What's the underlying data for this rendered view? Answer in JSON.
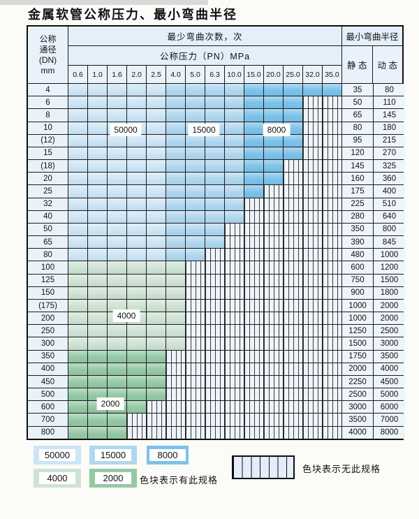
{
  "title": "金属软管公称压力、最小弯曲半径",
  "colors": {
    "c50000": "#cde5f5",
    "c15000": "#b0d7f0",
    "c8000": "#7cc2e9",
    "c4000": "#cfe3d4",
    "c2000": "#94c9a4",
    "nospec_bg": "#eef4fb",
    "header_bg": "#e3eff9",
    "grid": "#1c1c1c"
  },
  "table": {
    "corner_lines": [
      "公称",
      "通径",
      "(DN)",
      "mm"
    ],
    "bend_cycles_header": "最少弯曲次数，次",
    "pressure_header": "公称压力（PN）MPa",
    "radius_header": "最小弯曲半径",
    "static_label": "静 态",
    "dynamic_label": "动 态",
    "pressure_columns": [
      "0.6",
      "1.0",
      "1.6",
      "2.0",
      "2.5",
      "4.0",
      "5.0",
      "6.3",
      "10.0",
      "15.0",
      "20.0",
      "25.0",
      "32.0",
      "35.0"
    ],
    "blue_zone_breaks": {
      "c50000_max_col": 4,
      "c15000_max_col": 8
    },
    "rows": [
      {
        "dn": "4",
        "last": 13,
        "zone": "blue",
        "static": "35",
        "dynamic": "80"
      },
      {
        "dn": "6",
        "last": 11,
        "zone": "blue",
        "static": "50",
        "dynamic": "110"
      },
      {
        "dn": "8",
        "last": 11,
        "zone": "blue",
        "static": "65",
        "dynamic": "145"
      },
      {
        "dn": "10",
        "last": 11,
        "zone": "blue",
        "static": "80",
        "dynamic": "180"
      },
      {
        "dn": "(12)",
        "last": 11,
        "zone": "blue",
        "static": "95",
        "dynamic": "215"
      },
      {
        "dn": "15",
        "last": 11,
        "zone": "blue",
        "static": "120",
        "dynamic": "270"
      },
      {
        "dn": "(18)",
        "last": 10,
        "zone": "blue",
        "static": "145",
        "dynamic": "325"
      },
      {
        "dn": "20",
        "last": 10,
        "zone": "blue",
        "static": "160",
        "dynamic": "360"
      },
      {
        "dn": "25",
        "last": 9,
        "zone": "blue",
        "static": "175",
        "dynamic": "400"
      },
      {
        "dn": "32",
        "last": 8,
        "zone": "blue",
        "static": "225",
        "dynamic": "510"
      },
      {
        "dn": "40",
        "last": 8,
        "zone": "blue",
        "static": "280",
        "dynamic": "640"
      },
      {
        "dn": "50",
        "last": 7,
        "zone": "blue",
        "static": "350",
        "dynamic": "800"
      },
      {
        "dn": "65",
        "last": 7,
        "zone": "blue",
        "static": "390",
        "dynamic": "845"
      },
      {
        "dn": "80",
        "last": 6,
        "zone": "blue",
        "static": "480",
        "dynamic": "1000"
      },
      {
        "dn": "100",
        "last": 5,
        "zone": "g4",
        "static": "600",
        "dynamic": "1200"
      },
      {
        "dn": "125",
        "last": 5,
        "zone": "g4",
        "static": "750",
        "dynamic": "1500"
      },
      {
        "dn": "150",
        "last": 5,
        "zone": "g4",
        "static": "900",
        "dynamic": "1800"
      },
      {
        "dn": "(175)",
        "last": 5,
        "zone": "g4",
        "static": "1000",
        "dynamic": "2000"
      },
      {
        "dn": "200",
        "last": 5,
        "zone": "g4",
        "static": "1000",
        "dynamic": "2000"
      },
      {
        "dn": "250",
        "last": 5,
        "zone": "g4",
        "static": "1250",
        "dynamic": "2500"
      },
      {
        "dn": "300",
        "last": 5,
        "zone": "g4",
        "static": "1500",
        "dynamic": "3000"
      },
      {
        "dn": "350",
        "last": 4,
        "zone": "g2",
        "static": "1750",
        "dynamic": "3500"
      },
      {
        "dn": "400",
        "last": 4,
        "zone": "g2",
        "static": "2000",
        "dynamic": "4000"
      },
      {
        "dn": "450",
        "last": 4,
        "zone": "g2",
        "static": "2250",
        "dynamic": "4500"
      },
      {
        "dn": "500",
        "last": 4,
        "zone": "g2",
        "static": "2500",
        "dynamic": "5000"
      },
      {
        "dn": "600",
        "last": 3,
        "zone": "g2",
        "static": "3000",
        "dynamic": "6000"
      },
      {
        "dn": "700",
        "last": 2,
        "zone": "g2",
        "static": "3500",
        "dynamic": "7000"
      },
      {
        "dn": "800",
        "last": 2,
        "zone": "g2",
        "static": "4000",
        "dynamic": "8000"
      }
    ]
  },
  "overlay_labels": [
    "50000",
    "15000",
    "8000",
    "4000",
    "2000"
  ],
  "legend": {
    "swatch_50000": "50000",
    "swatch_15000": "15000",
    "swatch_8000": "8000",
    "swatch_4000": "4000",
    "swatch_2000": "2000",
    "available_note": "色块表示有此规格",
    "unavailable_note": "色块表示无此规格"
  }
}
